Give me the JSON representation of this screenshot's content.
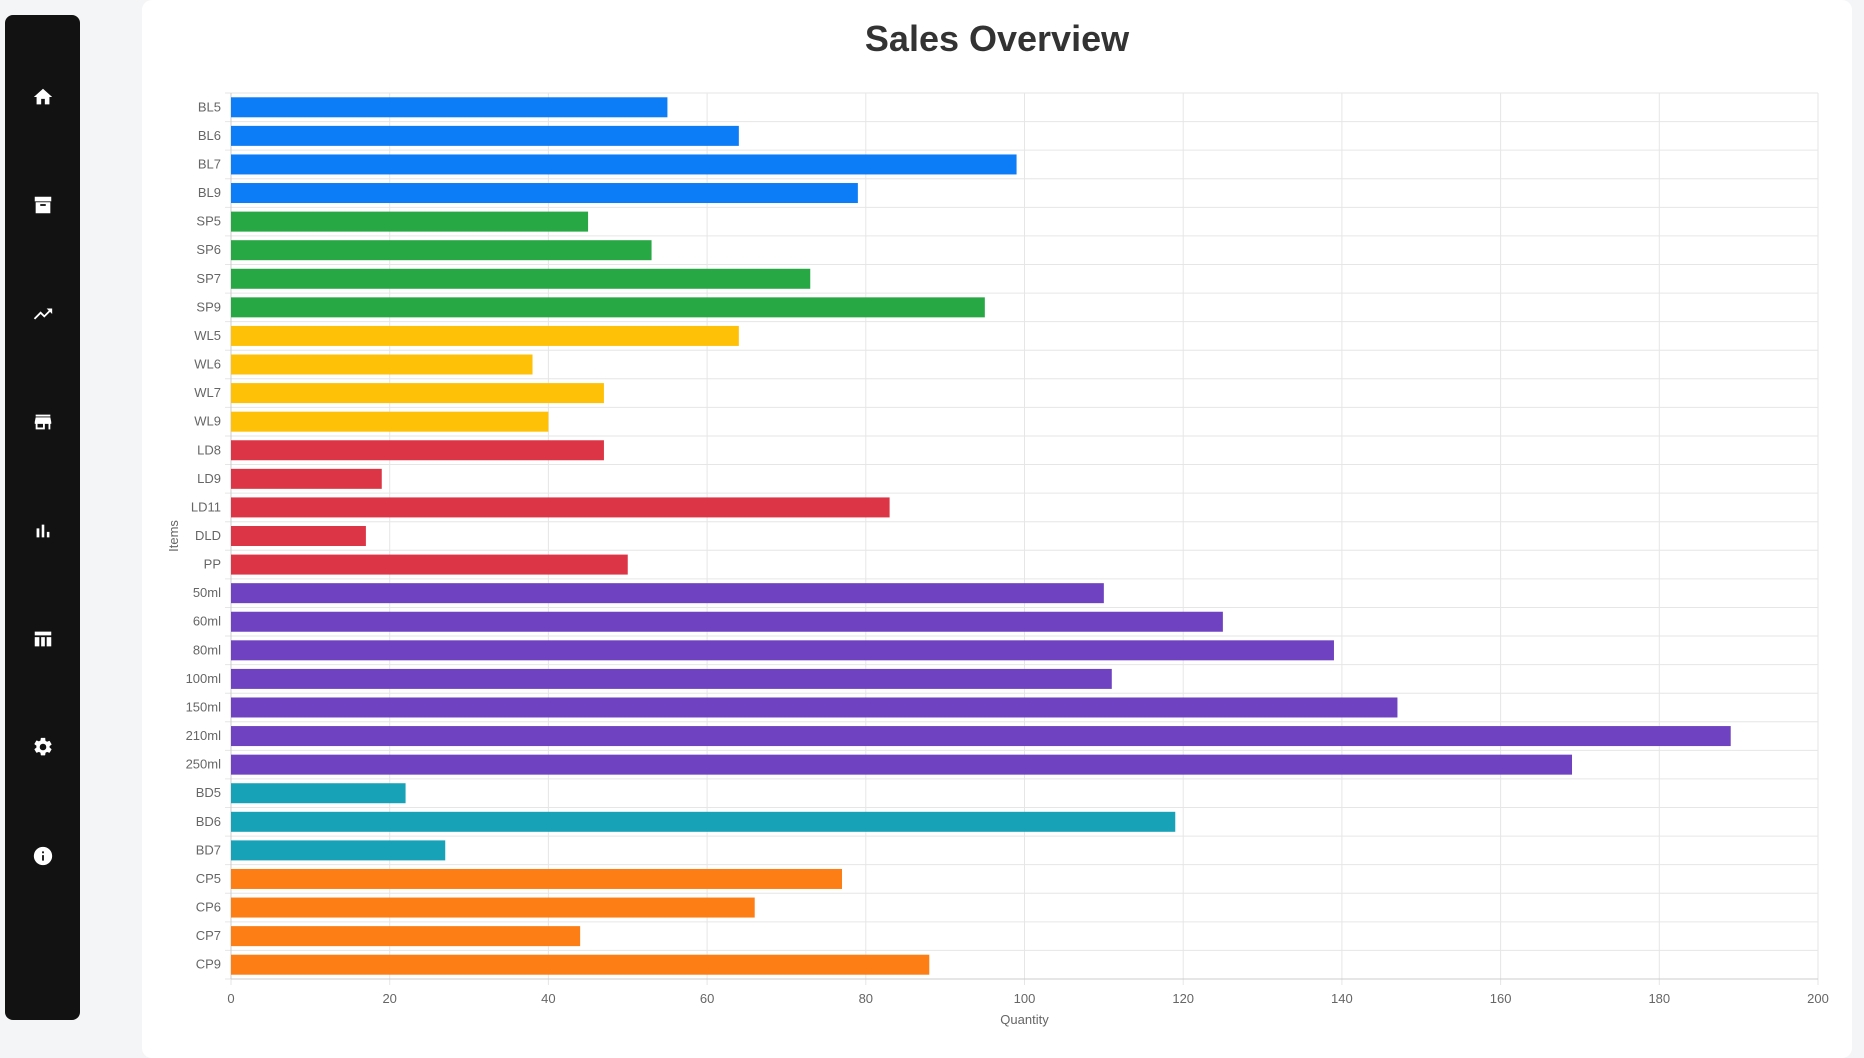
{
  "sidebar": {
    "items": [
      {
        "name": "nav-home",
        "icon": "home-icon"
      },
      {
        "name": "nav-inventory",
        "icon": "archive-icon"
      },
      {
        "name": "nav-trends",
        "icon": "trending-up-icon"
      },
      {
        "name": "nav-store",
        "icon": "store-icon"
      },
      {
        "name": "nav-reports",
        "icon": "bar-chart-icon"
      },
      {
        "name": "nav-table",
        "icon": "table-icon"
      },
      {
        "name": "nav-settings",
        "icon": "gear-icon"
      },
      {
        "name": "nav-info",
        "icon": "info-icon"
      }
    ]
  },
  "chart_data": {
    "type": "bar",
    "orientation": "horizontal",
    "title": "Sales Overview",
    "xlabel": "Quantity",
    "ylabel": "Items",
    "xlim": [
      0,
      200
    ],
    "xticks": [
      0,
      20,
      40,
      60,
      80,
      100,
      120,
      140,
      160,
      180,
      200
    ],
    "grid": true,
    "legend": "none",
    "categories": [
      "BL5",
      "BL6",
      "BL7",
      "BL9",
      "SP5",
      "SP6",
      "SP7",
      "SP9",
      "WL5",
      "WL6",
      "WL7",
      "WL9",
      "LD8",
      "LD9",
      "LD11",
      "DLD",
      "PP",
      "50ml",
      "60ml",
      "80ml",
      "100ml",
      "150ml",
      "210ml",
      "250ml",
      "BD5",
      "BD6",
      "BD7",
      "CP5",
      "CP6",
      "CP7",
      "CP9"
    ],
    "values": [
      55,
      64,
      99,
      79,
      45,
      53,
      73,
      95,
      64,
      38,
      47,
      40,
      47,
      19,
      83,
      17,
      50,
      110,
      125,
      139,
      111,
      147,
      189,
      169,
      22,
      119,
      27,
      77,
      66,
      44,
      88
    ],
    "colors": [
      "#0d7cf7",
      "#0d7cf7",
      "#0d7cf7",
      "#0d7cf7",
      "#28a745",
      "#28a745",
      "#28a745",
      "#28a745",
      "#ffc107",
      "#ffc107",
      "#ffc107",
      "#ffc107",
      "#dc3545",
      "#dc3545",
      "#dc3545",
      "#dc3545",
      "#dc3545",
      "#6f42c1",
      "#6f42c1",
      "#6f42c1",
      "#6f42c1",
      "#6f42c1",
      "#6f42c1",
      "#6f42c1",
      "#17a2b8",
      "#17a2b8",
      "#17a2b8",
      "#fd7e14",
      "#fd7e14",
      "#fd7e14",
      "#fd7e14"
    ]
  }
}
